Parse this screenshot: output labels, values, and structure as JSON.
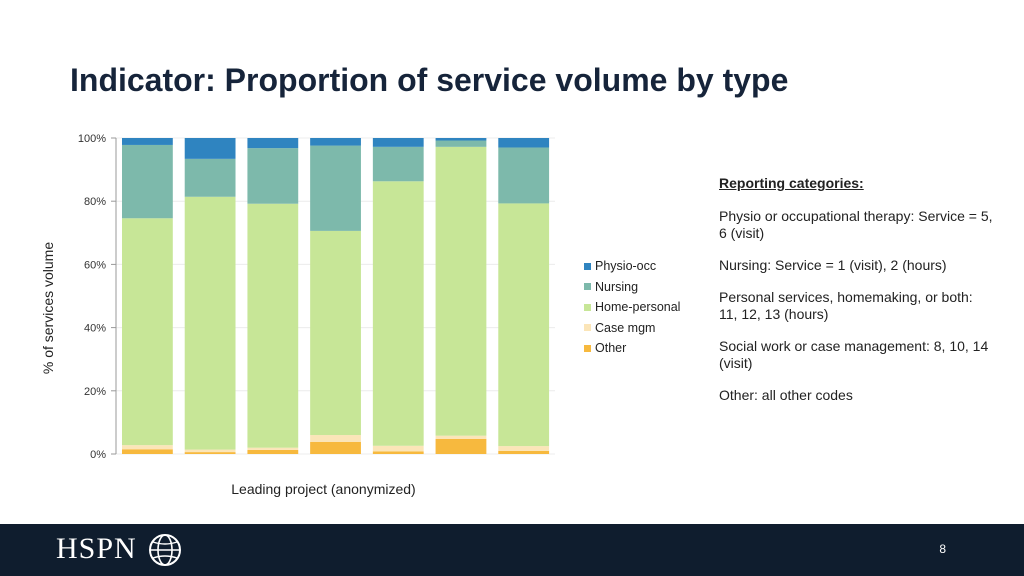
{
  "slide": {
    "title": "Indicator: Proportion of service volume by type",
    "page_number": "8"
  },
  "notes": {
    "heading": "Reporting categories:",
    "items": [
      "Physio or occupational therapy: Service = 5, 6 (visit)",
      "Nursing: Service = 1 (visit), 2 (hours)",
      "Personal services, homemaking, or both: 11, 12, 13 (hours)",
      "Social work or case management: 8, 10, 14 (visit)",
      "Other: all other codes"
    ]
  },
  "footer": {
    "logo_text": "HSPN",
    "logo_icon": "globe-icon",
    "background": "#0f1d2e"
  },
  "chart_data": {
    "type": "bar",
    "stacked": true,
    "xlabel": "Leading project (anonymized)",
    "ylabel": "% of services volume",
    "ylim": [
      0,
      100
    ],
    "yticks": [
      "0%",
      "20%",
      "40%",
      "60%",
      "80%",
      "100%"
    ],
    "categories": [
      "",
      "",
      "",
      "",
      "",
      "",
      ""
    ],
    "grid": true,
    "legend_position": "right",
    "series": [
      {
        "name": "Other",
        "color": "#f7b93e",
        "values": [
          1.5,
          0.6,
          1.3,
          3.8,
          0.8,
          4.8,
          1.0
        ]
      },
      {
        "name": "Case mgm",
        "color": "#fbe5b8",
        "values": [
          1.3,
          0.8,
          0.7,
          2.2,
          1.8,
          1.0,
          1.5
        ]
      },
      {
        "name": "Home-personal",
        "color": "#c7e697",
        "values": [
          71.8,
          80.0,
          77.2,
          64.6,
          83.7,
          91.4,
          76.8
        ]
      },
      {
        "name": "Nursing",
        "color": "#7db9ab",
        "values": [
          23.2,
          12.0,
          17.6,
          27.0,
          10.9,
          2.0,
          17.7
        ]
      },
      {
        "name": "Physio-occ",
        "color": "#2f84c0",
        "values": [
          2.2,
          6.6,
          3.2,
          2.4,
          2.8,
          0.8,
          3.0
        ]
      }
    ],
    "legend_order": [
      "Physio-occ",
      "Nursing",
      "Home-personal",
      "Case mgm",
      "Other"
    ]
  }
}
